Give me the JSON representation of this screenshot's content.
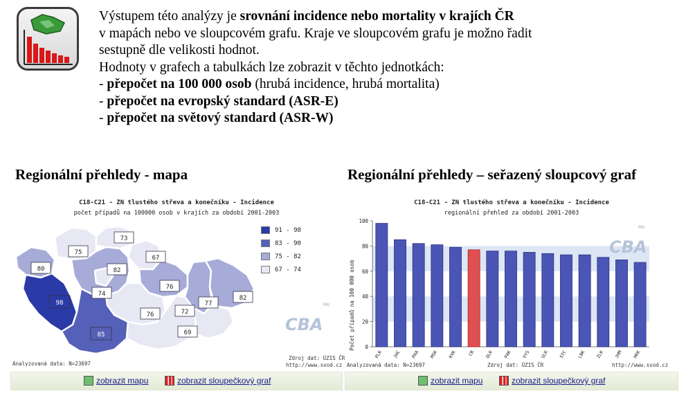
{
  "intro": {
    "line1_pre": "Výstupem této analýzy je ",
    "line1_bold": "srovnání incidence nebo mortality v krajích ČR",
    "line2": "v mapách nebo ve sloupcovém grafu. Kraje ve sloupcovém grafu je možno řadit",
    "line3": "sestupně dle velikosti hodnot.",
    "line4": "Hodnoty v grafech a tabulkách lze zobrazit v těchto jednotkách:",
    "units": [
      {
        "dash": "- ",
        "bold": "přepočet na 100 000 osob",
        "rest": " (hrubá incidence, hrubá mortalita)"
      },
      {
        "dash": "- ",
        "bold": "přepočet na evropský standard (ASR-E)",
        "rest": ""
      },
      {
        "dash": "- ",
        "bold": "přepočet na světový standard (ASR-W)",
        "rest": ""
      }
    ]
  },
  "map_section": {
    "heading": "Regionální přehledy - mapa",
    "title": "C18-C21 - ZN tlustého střeva a konečníku - Incidence",
    "subtitle": "počet případů na 100000 osob v krajích za období 2001-2003",
    "legend": [
      {
        "label": "91 - 98",
        "color": "#2a3aa6"
      },
      {
        "label": "83 - 90",
        "color": "#5560b8"
      },
      {
        "label": "75 - 82",
        "color": "#a6abd8"
      },
      {
        "label": "67 - 74",
        "color": "#e7e8f4"
      }
    ],
    "region_values": [
      "98",
      "80",
      "75",
      "73",
      "67",
      "82",
      "74",
      "76",
      "77",
      "82",
      "76",
      "85",
      "69",
      "72"
    ],
    "footer_left": "Analyzovaná data: N=23697",
    "footer_right_1": "Zdroj dat: ÚZIS ČR",
    "footer_right_2": "http://www.svod.cz",
    "logo": "CBA",
    "logo_mu": "MU"
  },
  "bar_section": {
    "heading": "Regionální přehledy – seřazený sloupcový graf",
    "footer_left": "Analyzovaná data: N=23697",
    "footer_mid": "Zdroj dat: ÚZIS ČR",
    "footer_right": "http://www.svod.cz",
    "logo": "CBA",
    "logo_mu": "MU",
    "bar_color": "#4a55b5",
    "highlight_color": "#e05050"
  },
  "chart_data": {
    "type": "bar",
    "title": "C18-C21 - ZN tlustého střeva a konečníku - Incidence",
    "subtitle": "regionální přehled za období 2001-2003",
    "ylabel": "Počet případů na 100 000 osob",
    "ylim": [
      0,
      100
    ],
    "yticks": [
      0,
      20,
      40,
      60,
      80,
      100
    ],
    "categories": [
      "PLK",
      "JHC",
      "PHA",
      "MSK",
      "KVK",
      "CR",
      "OLK",
      "PAK",
      "VYS",
      "ULK",
      "STC",
      "LBK",
      "ZLK",
      "JHM",
      "HKK"
    ],
    "values": [
      98,
      85,
      82,
      81,
      79,
      77,
      76,
      76,
      75,
      74,
      73,
      73,
      71,
      69,
      67
    ],
    "highlight": "CR"
  },
  "links": {
    "map": "zobrazit mapu",
    "bar": "zobrazit sloupečkový graf"
  }
}
